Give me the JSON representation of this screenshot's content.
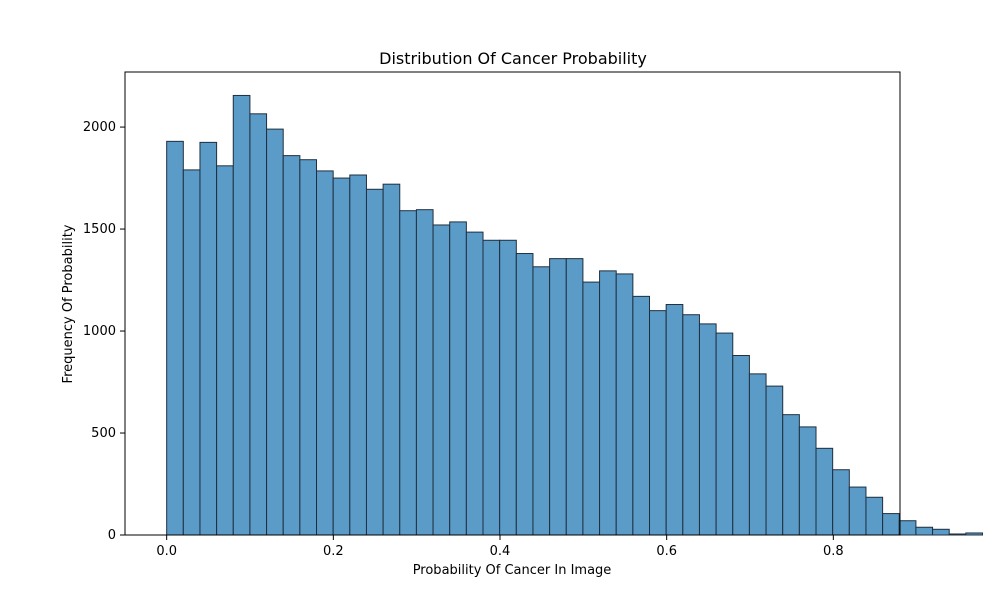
{
  "chart_data": {
    "type": "bar",
    "title": "Distribution Of Cancer Probability",
    "xlabel": "Probability Of Cancer In Image",
    "ylabel": "Frequency Of Probability",
    "xlim": [
      -0.05,
      0.88
    ],
    "ylim": [
      0,
      2270
    ],
    "xticks": [
      0.0,
      0.2,
      0.4,
      0.6,
      0.8
    ],
    "xtick_labels": [
      "0.0",
      "0.2",
      "0.4",
      "0.6",
      "0.8"
    ],
    "yticks": [
      0,
      500,
      1000,
      1500,
      2000
    ],
    "ytick_labels": [
      "0",
      "500",
      "1000",
      "1500",
      "2000"
    ],
    "grid": false,
    "bin_start": 0.0,
    "bin_width": 0.01998,
    "values": [
      1930,
      1790,
      1925,
      1810,
      2155,
      2065,
      1990,
      1860,
      1840,
      1785,
      1750,
      1765,
      1695,
      1720,
      1590,
      1595,
      1520,
      1535,
      1485,
      1445,
      1445,
      1380,
      1315,
      1355,
      1355,
      1240,
      1295,
      1280,
      1170,
      1100,
      1130,
      1080,
      1035,
      990,
      880,
      790,
      730,
      590,
      530,
      425,
      320,
      235,
      185,
      105,
      70,
      38,
      28,
      5,
      10
    ],
    "bar_color": "#5b9bc8",
    "edge_color": "#1f2f3f"
  }
}
